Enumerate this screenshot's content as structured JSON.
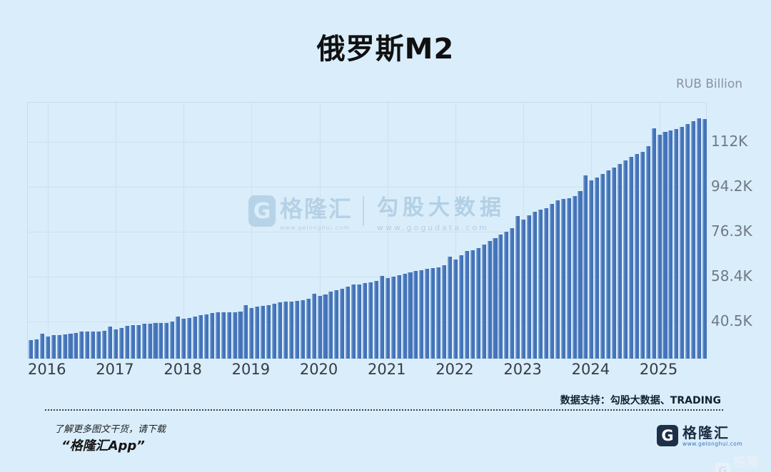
{
  "header": {
    "title": "俄罗斯M2"
  },
  "chart": {
    "unit_label": "RUB Billion"
  },
  "brand": {
    "name": "格隆汇",
    "url": "www.gelonghui.com",
    "g_glyph": "G"
  },
  "watermark": {
    "partner_name": "勾股大数据",
    "partner_url": "www.gogudata.com"
  },
  "footer": {
    "data_support": "数据支持：勾股大数据、TRADING",
    "promo_line1": "了解更多图文干货，请下载",
    "promo_line2": "“格隆汇App”"
  },
  "colors": {
    "background": "#daedfa",
    "bar_fill": "#4473b9",
    "bar_highlight": "#84a9d8",
    "grid": "#cfe0ef",
    "tick_text": "#6f7984",
    "title_text": "#101010",
    "watermark_blue": "#aecde4",
    "logo_navy": "#1c3048"
  },
  "chart_data": {
    "type": "bar",
    "title": "俄罗斯M2",
    "ylabel": "RUB Billion",
    "xlabel": "",
    "grid": true,
    "legend": "none",
    "start_month": "2015-10",
    "end_month": "2025-09",
    "frequency": "monthly",
    "ylim": [
      25500,
      127500
    ],
    "y_tick_values": [
      40500,
      58400,
      76300,
      94200,
      112000
    ],
    "y_tick_labels": [
      "40.5K",
      "58.4K",
      "76.3K",
      "94.2K",
      "112K"
    ],
    "x_year_labels": [
      "2016",
      "2017",
      "2018",
      "2019",
      "2020",
      "2021",
      "2022",
      "2023",
      "2024",
      "2025"
    ],
    "series": [
      {
        "name": "俄罗斯M2 (RUB Billion)",
        "values": [
          33034,
          33357,
          35810,
          34617,
          35018,
          35053,
          35529,
          35756,
          36118,
          36437,
          36461,
          36489,
          36554,
          36833,
          38418,
          37536,
          38062,
          38706,
          38985,
          39179,
          39623,
          39748,
          39812,
          39937,
          40049,
          40443,
          42442,
          41579,
          42014,
          42378,
          42947,
          43279,
          43953,
          44139,
          44217,
          44085,
          44147,
          44602,
          47109,
          45878,
          46465,
          46789,
          47096,
          47684,
          48301,
          48462,
          48494,
          48734,
          49023,
          49555,
          51660,
          50621,
          51314,
          52298,
          53041,
          53525,
          54332,
          55124,
          55280,
          55815,
          56149,
          56689,
          58652,
          57795,
          58485,
          58927,
          59626,
          59970,
          60575,
          60950,
          61434,
          61704,
          62111,
          63040,
          66253,
          65308,
          66810,
          68551,
          68868,
          69679,
          71069,
          72571,
          73552,
          75133,
          76141,
          77750,
          82388,
          81152,
          82596,
          84060,
          84885,
          85595,
          87269,
          88557,
          89111,
          89648,
          90282,
          92435,
          98566,
          96650,
          97810,
          99110,
          100444,
          101682,
          103175,
          104650,
          105949,
          107214,
          107860,
          110145,
          117268,
          114784,
          115950,
          116413,
          117051,
          117947,
          119089,
          120231,
          121307,
          121090
        ]
      }
    ]
  }
}
